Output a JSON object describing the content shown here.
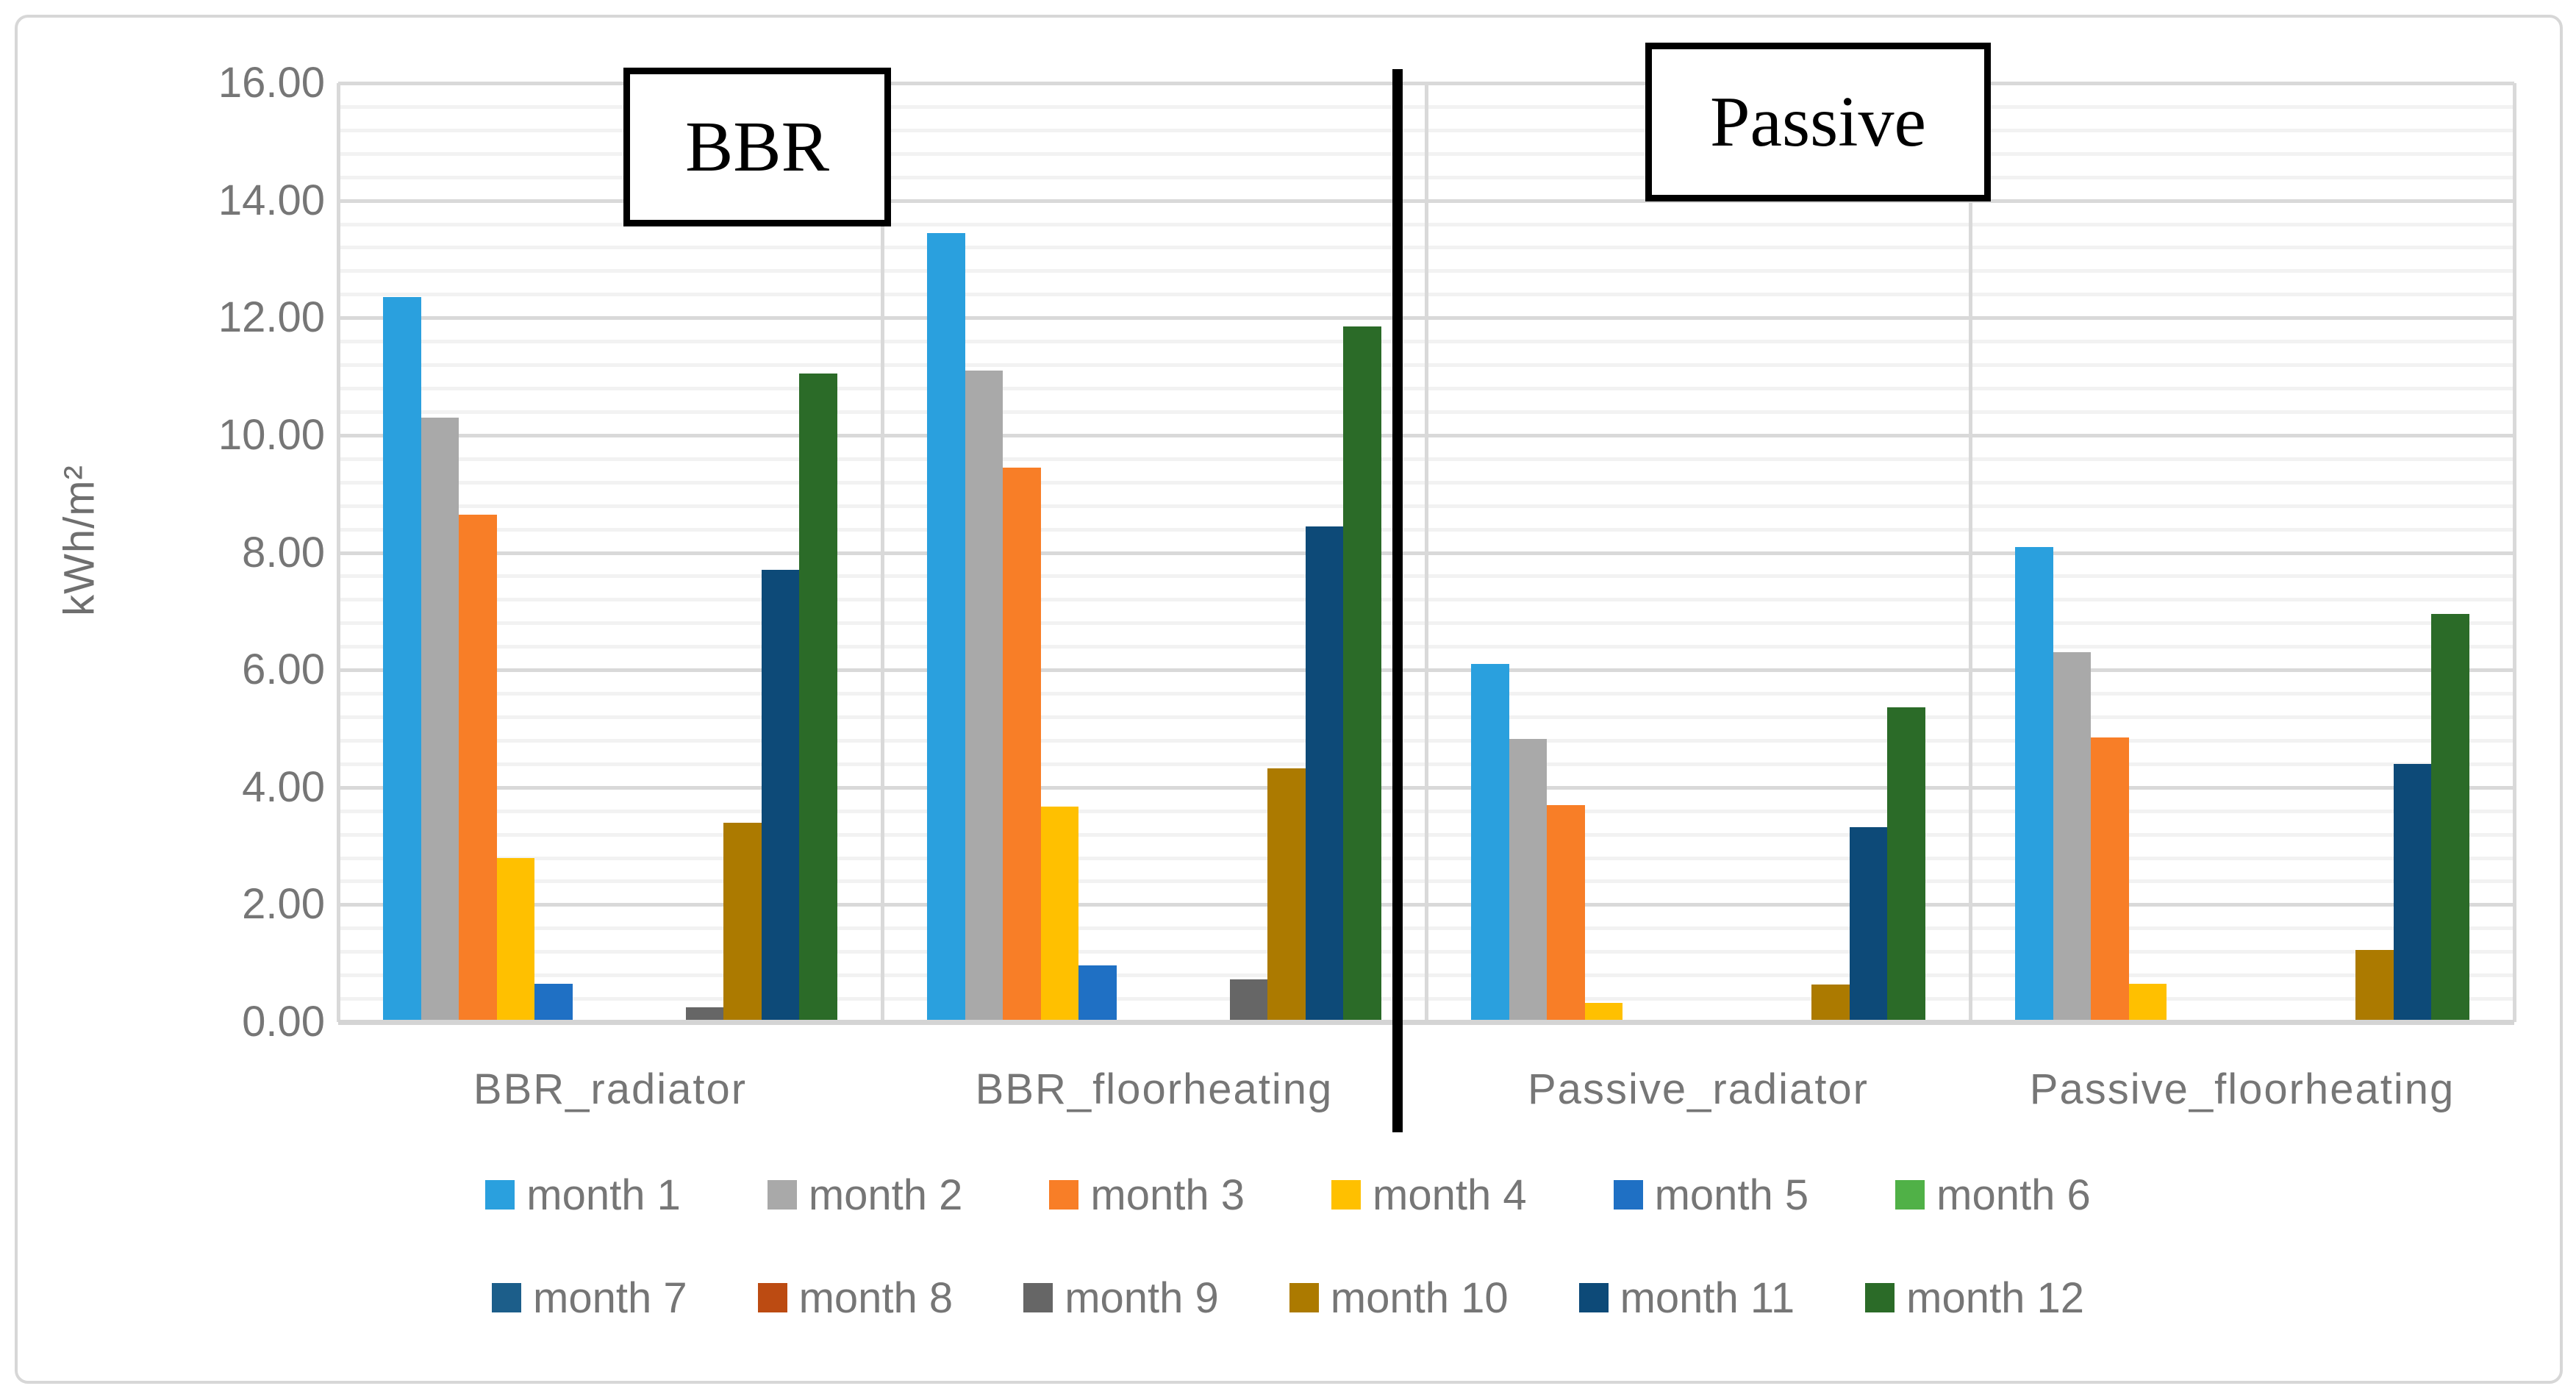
{
  "colors": {
    "grid_major": "#d9d9d9",
    "grid_minor": "#f2f2f2",
    "baseline": "#d4d4d4",
    "divider": "#000000",
    "text_gray": "#767676",
    "frame_border": "#d7d7d7"
  },
  "chart_data": {
    "type": "bar",
    "title": "",
    "ylabel": "kWh/m²",
    "xlabel": "",
    "ylim": [
      0,
      16
    ],
    "y_major_step": 2,
    "y_minor_step": 0.4,
    "y_tick_labels": [
      "0.00",
      "2.00",
      "4.00",
      "6.00",
      "8.00",
      "10.00",
      "12.00",
      "14.00",
      "16.00"
    ],
    "grid": true,
    "legend_position": "bottom",
    "legend_rows": 2,
    "categories": [
      "BBR_radiator",
      "BBR_floorheating",
      "Passive_radiator",
      "Passive_floorheating"
    ],
    "section_labels": [
      {
        "text": "BBR"
      },
      {
        "text": "Passive"
      }
    ],
    "divider_after_category_index": 2,
    "series": [
      {
        "name": "month 1",
        "color": "#2aa0de",
        "values": [
          12.35,
          13.45,
          6.1,
          8.1
        ]
      },
      {
        "name": "month 2",
        "color": "#a9a9a9",
        "values": [
          10.3,
          11.1,
          4.82,
          6.3
        ]
      },
      {
        "name": "month 3",
        "color": "#f87e27",
        "values": [
          8.65,
          9.45,
          3.7,
          4.85
        ]
      },
      {
        "name": "month 4",
        "color": "#ffc000",
        "values": [
          2.8,
          3.67,
          0.32,
          0.65
        ]
      },
      {
        "name": "month 5",
        "color": "#1f70c4",
        "values": [
          0.65,
          0.97,
          0.0,
          0.0
        ]
      },
      {
        "name": "month 6",
        "color": "#50b147",
        "values": [
          0.0,
          0.0,
          0.0,
          0.0
        ]
      },
      {
        "name": "month 7",
        "color": "#1c5e8a",
        "values": [
          0.0,
          0.0,
          0.0,
          0.0
        ]
      },
      {
        "name": "month 8",
        "color": "#bc4b12",
        "values": [
          0.0,
          0.0,
          0.0,
          0.0
        ]
      },
      {
        "name": "month 9",
        "color": "#666666",
        "values": [
          0.25,
          0.73,
          0.0,
          0.0
        ]
      },
      {
        "name": "month 10",
        "color": "#ac7a00",
        "values": [
          3.4,
          4.32,
          0.64,
          1.23
        ]
      },
      {
        "name": "month 11",
        "color": "#0d4a78",
        "values": [
          7.7,
          8.45,
          3.32,
          4.4
        ]
      },
      {
        "name": "month 12",
        "color": "#2b6b28",
        "values": [
          11.05,
          11.85,
          5.36,
          6.95
        ]
      }
    ]
  }
}
